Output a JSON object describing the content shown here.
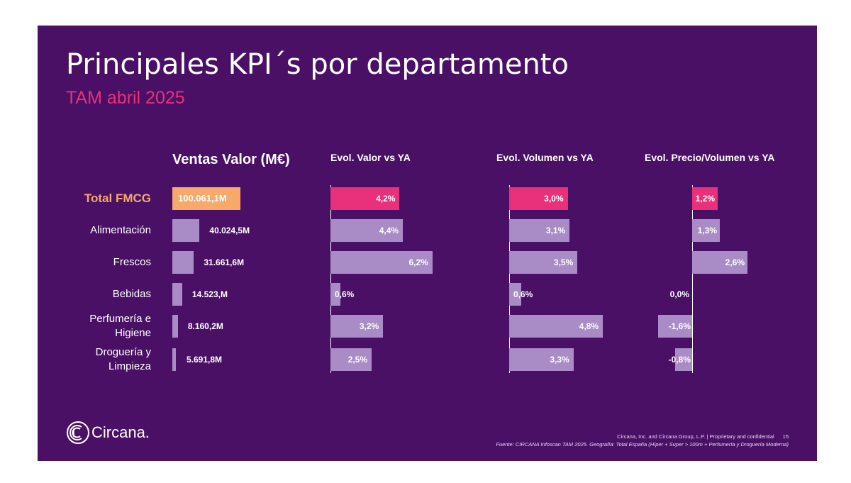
{
  "header": {
    "title": "Principales KPI´s por departamento",
    "subtitle": "TAM abril 2025"
  },
  "colors": {
    "background": "#4a1066",
    "subtitle": "#e8317a",
    "total_label": "#f6a96b",
    "total_sales_bar": "#f6a96b",
    "total_evol_bar": "#e8317a",
    "dept_bar": "#a98bc6"
  },
  "chart_data": {
    "type": "bar",
    "categories": [
      "Total FMCG",
      "Alimentación",
      "Frescos",
      "Bebidas",
      "Perfumería e Higiene",
      "Droguería y Limpieza"
    ],
    "category_lines": [
      [
        "Total FMCG"
      ],
      [
        "Alimentación"
      ],
      [
        "Frescos"
      ],
      [
        "Bebidas"
      ],
      [
        "Perfumería e",
        "Higiene"
      ],
      [
        "Droguería y",
        "Limpieza"
      ]
    ],
    "series": [
      {
        "name": "Ventas Valor (M€)",
        "values": [
          100061.1,
          40024.5,
          31661.6,
          14523,
          8160.2,
          5691.8
        ],
        "labels": [
          "100.061,1M",
          "40.024,5M",
          "31.661,6M",
          "14.523,M",
          "8.160,2M",
          "5.691,8M"
        ]
      },
      {
        "name": "Evol. Valor vs YA",
        "values": [
          4.2,
          4.4,
          6.2,
          0.6,
          3.2,
          2.5
        ],
        "labels": [
          "4,2%",
          "4,4%",
          "6,2%",
          "0,6%",
          "3,2%",
          "2,5%"
        ]
      },
      {
        "name": "Evol. Volumen vs YA",
        "values": [
          3.0,
          3.1,
          3.5,
          0.6,
          4.8,
          3.3
        ],
        "labels": [
          "3,0%",
          "3,1%",
          "3,5%",
          "0,6%",
          "4,8%",
          "3,3%"
        ]
      },
      {
        "name": "Evol. Precio/Volumen vs YA",
        "values": [
          1.2,
          1.3,
          2.6,
          0.0,
          -1.6,
          -0.8
        ],
        "labels": [
          "1,2%",
          "1,3%",
          "2,6%",
          "0,0%",
          "-1,6%",
          "-0,8%"
        ]
      }
    ]
  },
  "logo": {
    "text": "Circana."
  },
  "footer": {
    "line1": "Circana, Inc. and Circana Group, L.P. | Proprietary and confidential",
    "page": "15",
    "line2": "Fuente: CIRCANA Infoscan TAM 2025. Geografía: Total España (Híper + Super > 100m + Perfumería y Droguería Moderna)"
  }
}
